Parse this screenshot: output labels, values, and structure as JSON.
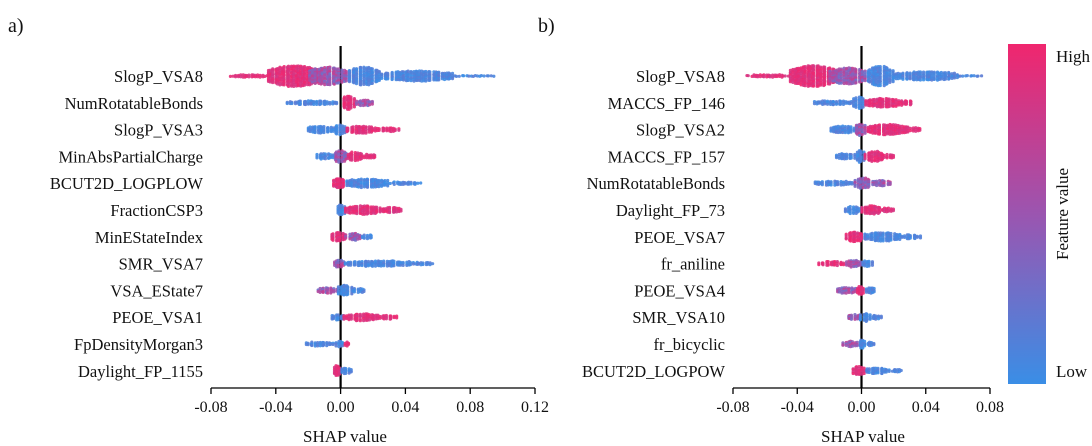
{
  "panels": [
    {
      "label": "a)",
      "chart_data": {
        "type": "scatter",
        "subtype": "shap-beeswarm",
        "xlabel": "SHAP value",
        "xlim": [
          -0.08,
          0.12
        ],
        "xticks": [
          -0.08,
          -0.04,
          0.0,
          0.04,
          0.08,
          0.12
        ],
        "xtick_labels": [
          "-0.08",
          "-0.04",
          "0.00",
          "0.04",
          "0.08",
          "0.12"
        ],
        "grid": false,
        "features": [
          {
            "name": "SlogP_VSA8",
            "clusters": [
              [
                -0.068,
                -0.045,
                2,
                "high"
              ],
              [
                -0.045,
                -0.012,
                14,
                "high"
              ],
              [
                -0.02,
                0.004,
                12,
                "mid"
              ],
              [
                0.004,
                0.025,
                12,
                "low"
              ],
              [
                0.025,
                0.07,
                7,
                "low"
              ],
              [
                0.07,
                0.095,
                1,
                "low"
              ]
            ]
          },
          {
            "name": "NumRotatableBonds",
            "clusters": [
              [
                -0.033,
                -0.002,
                3,
                "low"
              ],
              [
                0.001,
                0.009,
                9,
                "high"
              ],
              [
                0.009,
                0.02,
                4,
                "mid"
              ]
            ]
          },
          {
            "name": "SlogP_VSA3",
            "clusters": [
              [
                -0.021,
                -0.004,
                5,
                "low"
              ],
              [
                -0.004,
                0.003,
                7,
                "low"
              ],
              [
                0.003,
                0.022,
                5,
                "high"
              ],
              [
                0.022,
                0.036,
                3,
                "high"
              ]
            ]
          },
          {
            "name": "MinAbsPartialCharge",
            "clusters": [
              [
                -0.015,
                -0.004,
                4,
                "low"
              ],
              [
                -0.004,
                0.004,
                8,
                "mid"
              ],
              [
                0.004,
                0.014,
                6,
                "high"
              ],
              [
                0.014,
                0.022,
                3,
                "high"
              ]
            ]
          },
          {
            "name": "BCUT2D_LOGPLOW",
            "clusters": [
              [
                -0.005,
                0.003,
                7,
                "high"
              ],
              [
                0.003,
                0.03,
                6,
                "low"
              ],
              [
                0.03,
                0.05,
                2,
                "low"
              ]
            ]
          },
          {
            "name": "FractionCSP3",
            "clusters": [
              [
                -0.003,
                0.003,
                7,
                "low"
              ],
              [
                0.003,
                0.025,
                6,
                "high"
              ],
              [
                0.025,
                0.038,
                4,
                "high"
              ]
            ]
          },
          {
            "name": "MinEStateIndex",
            "clusters": [
              [
                -0.006,
                0.003,
                6,
                "high"
              ],
              [
                0.003,
                0.013,
                5,
                "mid"
              ],
              [
                0.013,
                0.02,
                3,
                "low"
              ]
            ]
          },
          {
            "name": "SMR_VSA7",
            "clusters": [
              [
                -0.005,
                0.002,
                5,
                "mid"
              ],
              [
                0.002,
                0.045,
                4,
                "low"
              ],
              [
                0.045,
                0.057,
                2,
                "low"
              ]
            ]
          },
          {
            "name": "VSA_EState7",
            "clusters": [
              [
                -0.015,
                -0.002,
                4,
                "mid"
              ],
              [
                -0.002,
                0.007,
                7,
                "low"
              ],
              [
                0.007,
                0.015,
                3,
                "low"
              ]
            ]
          },
          {
            "name": "PEOE_VSA1",
            "clusters": [
              [
                -0.006,
                0.002,
                4,
                "low"
              ],
              [
                0.002,
                0.024,
                5,
                "high"
              ],
              [
                0.024,
                0.035,
                3,
                "high"
              ]
            ]
          },
          {
            "name": "FpDensityMorgan3",
            "clusters": [
              [
                -0.022,
                -0.004,
                3,
                "low"
              ],
              [
                -0.004,
                0.002,
                4,
                "low"
              ],
              [
                0.002,
                0.006,
                3,
                "high"
              ]
            ]
          },
          {
            "name": "Daylight_FP_1155",
            "clusters": [
              [
                -0.005,
                0.0,
                7,
                "high"
              ],
              [
                0.0,
                0.007,
                4,
                "low"
              ]
            ]
          }
        ]
      }
    },
    {
      "label": "b)",
      "chart_data": {
        "type": "scatter",
        "subtype": "shap-beeswarm",
        "xlabel": "SHAP value",
        "xlim": [
          -0.08,
          0.08
        ],
        "xticks": [
          -0.08,
          -0.04,
          0.0,
          0.04,
          0.08
        ],
        "xtick_labels": [
          "-0.08",
          "-0.04",
          "0.00",
          "0.04",
          "0.08"
        ],
        "grid": false,
        "features": [
          {
            "name": "SlogP_VSA8",
            "clusters": [
              [
                -0.072,
                -0.045,
                2,
                "high"
              ],
              [
                -0.045,
                -0.015,
                14,
                "high"
              ],
              [
                -0.02,
                0.003,
                11,
                "mid"
              ],
              [
                0.003,
                0.02,
                13,
                "low"
              ],
              [
                0.02,
                0.06,
                6,
                "low"
              ],
              [
                0.06,
                0.075,
                1,
                "low"
              ]
            ]
          },
          {
            "name": "MACCS_FP_146",
            "clusters": [
              [
                -0.03,
                -0.005,
                3,
                "low"
              ],
              [
                -0.005,
                0.002,
                8,
                "low"
              ],
              [
                0.002,
                0.025,
                6,
                "high"
              ],
              [
                0.025,
                0.032,
                3,
                "high"
              ]
            ]
          },
          {
            "name": "SlogP_VSA2",
            "clusters": [
              [
                -0.02,
                -0.004,
                5,
                "low"
              ],
              [
                -0.004,
                0.003,
                8,
                "mid"
              ],
              [
                0.003,
                0.03,
                7,
                "high"
              ],
              [
                0.03,
                0.037,
                3,
                "high"
              ]
            ]
          },
          {
            "name": "MACCS_FP_157",
            "clusters": [
              [
                -0.016,
                -0.004,
                4,
                "low"
              ],
              [
                -0.004,
                0.002,
                8,
                "low"
              ],
              [
                0.002,
                0.014,
                7,
                "high"
              ],
              [
                0.014,
                0.021,
                3,
                "high"
              ]
            ]
          },
          {
            "name": "NumRotatableBonds",
            "clusters": [
              [
                -0.03,
                -0.004,
                3,
                "low"
              ],
              [
                -0.004,
                0.006,
                7,
                "mid"
              ],
              [
                0.006,
                0.018,
                4,
                "mid"
              ]
            ]
          },
          {
            "name": "Daylight_FP_73",
            "clusters": [
              [
                -0.01,
                0.0,
                5,
                "low"
              ],
              [
                0.0,
                0.012,
                6,
                "high"
              ],
              [
                0.012,
                0.02,
                3,
                "high"
              ]
            ]
          },
          {
            "name": "PEOE_VSA7",
            "clusters": [
              [
                -0.01,
                0.001,
                7,
                "high"
              ],
              [
                0.001,
                0.025,
                6,
                "low"
              ],
              [
                0.025,
                0.037,
                3,
                "low"
              ]
            ]
          },
          {
            "name": "fr_aniline",
            "clusters": [
              [
                -0.027,
                -0.01,
                3,
                "high"
              ],
              [
                -0.01,
                0.0,
                5,
                "mid"
              ],
              [
                0.0,
                0.007,
                4,
                "low"
              ]
            ]
          },
          {
            "name": "PEOE_VSA4",
            "clusters": [
              [
                -0.016,
                -0.003,
                4,
                "mid"
              ],
              [
                -0.003,
                0.002,
                6,
                "high"
              ],
              [
                0.002,
                0.009,
                4,
                "low"
              ]
            ]
          },
          {
            "name": "SMR_VSA10",
            "clusters": [
              [
                -0.009,
                -0.001,
                4,
                "mid"
              ],
              [
                -0.001,
                0.006,
                6,
                "low"
              ],
              [
                0.006,
                0.013,
                3,
                "low"
              ]
            ]
          },
          {
            "name": "fr_bicyclic",
            "clusters": [
              [
                -0.012,
                -0.002,
                4,
                "mid"
              ],
              [
                -0.002,
                0.003,
                6,
                "low"
              ],
              [
                0.003,
                0.008,
                3,
                "low"
              ]
            ]
          },
          {
            "name": "BCUT2D_LOGPOW",
            "clusters": [
              [
                -0.006,
                0.002,
                6,
                "high"
              ],
              [
                0.002,
                0.018,
                4,
                "low"
              ],
              [
                0.018,
                0.026,
                2,
                "low"
              ]
            ]
          }
        ]
      }
    }
  ],
  "colorbar": {
    "high_label": "High",
    "low_label": "Low",
    "title": "Feature value",
    "high_color": "#f0266e",
    "mid_color": "#9b55b0",
    "low_color": "#3a8ee6"
  }
}
